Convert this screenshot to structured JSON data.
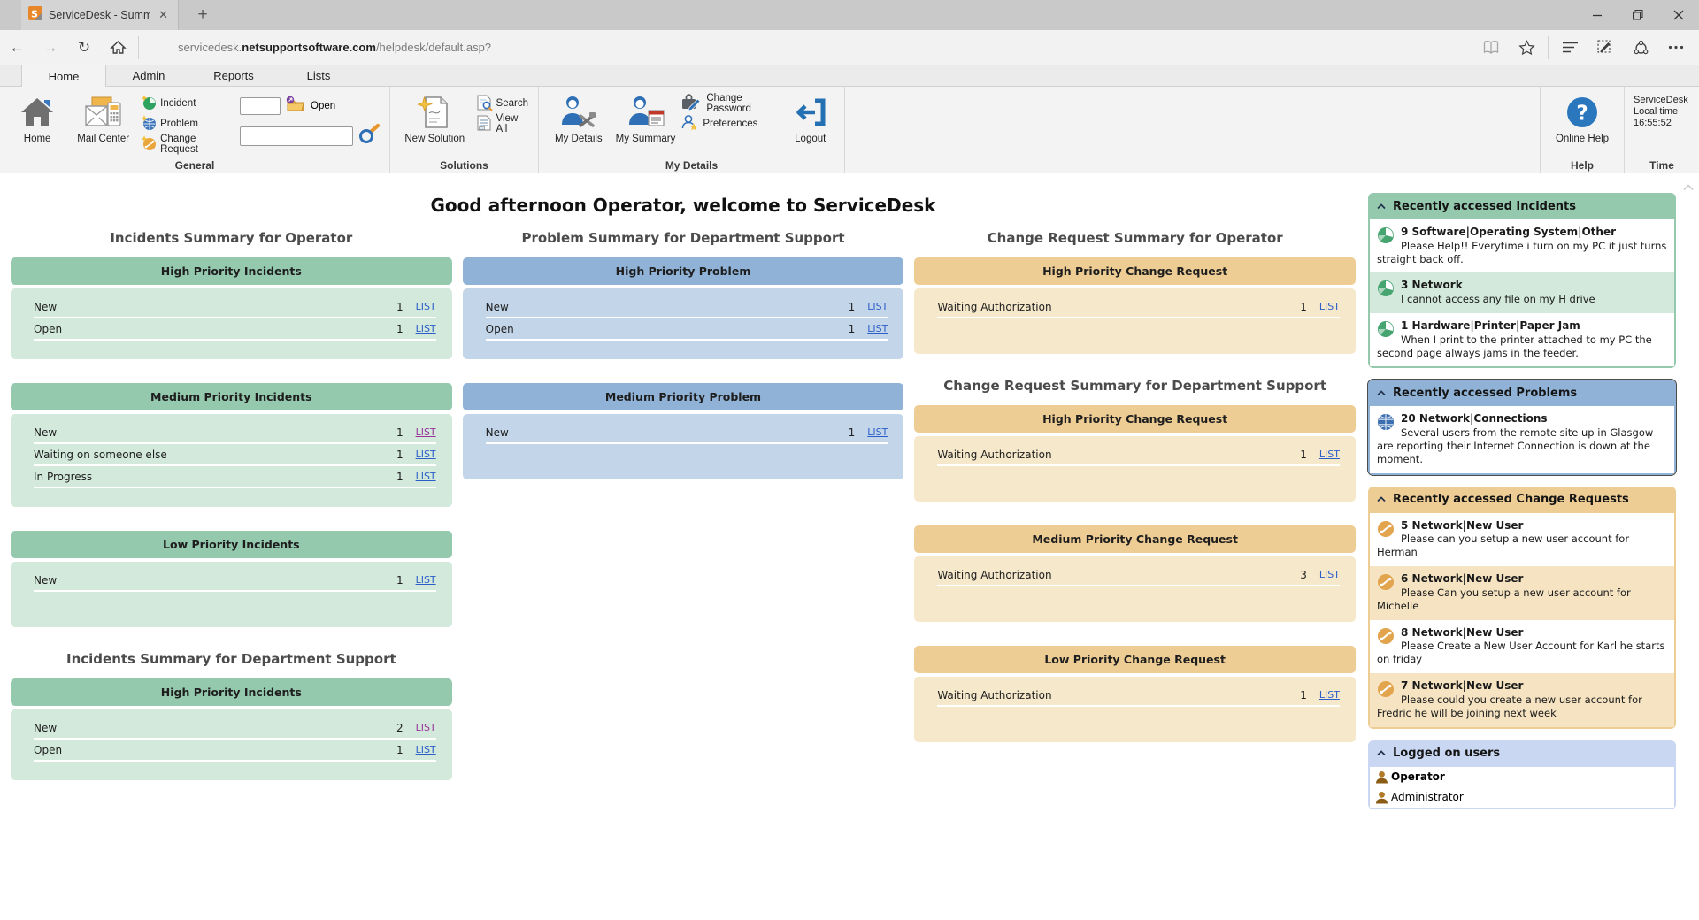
{
  "browser": {
    "tab_title": "ServiceDesk - Summary",
    "url": {
      "prefix": "servicedesk.",
      "domain": "netsupportsoftware.com",
      "path": "/helpdesk/default.asp?"
    }
  },
  "ribbon": {
    "tabs": [
      "Home",
      "Admin",
      "Reports",
      "Lists"
    ],
    "groups": {
      "general": {
        "label": "General",
        "home": "Home",
        "mail_center": "Mail Center",
        "links": [
          "Incident",
          "Problem",
          "Change Request"
        ],
        "open_label": "Open",
        "id_input_value": "",
        "search_input_value": ""
      },
      "solutions": {
        "label": "Solutions",
        "new_solution": "New Solution",
        "search": "Search",
        "view_all": "View All"
      },
      "my_details": {
        "label": "My Details",
        "my_details": "My Details",
        "my_summary": "My Summary",
        "change_password": "Change Password",
        "preferences": "Preferences",
        "logout": "Logout"
      },
      "help": {
        "label": "Help",
        "online_help": "Online Help"
      },
      "time": {
        "label": "Time",
        "lines": [
          "ServiceDesk",
          "Local time",
          "16:55:52"
        ]
      }
    }
  },
  "main": {
    "greeting": "Good afternoon Operator, welcome to ServiceDesk",
    "columns": [
      {
        "sections": [
          {
            "heading": "Incidents Summary for Operator",
            "panels": [
              {
                "title": "High Priority Incidents",
                "theme": "green",
                "rows": [
                  {
                    "label": "New",
                    "count": "1",
                    "link": "LIST",
                    "visited": false
                  },
                  {
                    "label": "Open",
                    "count": "1",
                    "link": "LIST",
                    "visited": false
                  }
                ]
              },
              {
                "title": "Medium Priority Incidents",
                "theme": "green",
                "rows": [
                  {
                    "label": "New",
                    "count": "1",
                    "link": "LIST",
                    "visited": true
                  },
                  {
                    "label": "Waiting on someone else",
                    "count": "1",
                    "link": "LIST",
                    "visited": false
                  },
                  {
                    "label": "In Progress",
                    "count": "1",
                    "link": "LIST",
                    "visited": false
                  }
                ]
              },
              {
                "title": "Low Priority Incidents",
                "theme": "green",
                "rows": [
                  {
                    "label": "New",
                    "count": "1",
                    "link": "LIST",
                    "visited": false
                  }
                ]
              }
            ]
          },
          {
            "heading": "Incidents Summary for Department Support",
            "panels": [
              {
                "title": "High Priority Incidents",
                "theme": "green",
                "rows": [
                  {
                    "label": "New",
                    "count": "2",
                    "link": "LIST",
                    "visited": true
                  },
                  {
                    "label": "Open",
                    "count": "1",
                    "link": "LIST",
                    "visited": false
                  }
                ]
              }
            ]
          }
        ]
      },
      {
        "sections": [
          {
            "heading": "Problem Summary for Department Support",
            "panels": [
              {
                "title": "High Priority Problem",
                "theme": "blue",
                "rows": [
                  {
                    "label": "New",
                    "count": "1",
                    "link": "LIST",
                    "visited": false
                  },
                  {
                    "label": "Open",
                    "count": "1",
                    "link": "LIST",
                    "visited": false
                  }
                ]
              },
              {
                "title": "Medium Priority Problem",
                "theme": "blue",
                "rows": [
                  {
                    "label": "New",
                    "count": "1",
                    "link": "LIST",
                    "visited": false
                  }
                ]
              }
            ]
          }
        ]
      },
      {
        "sections": [
          {
            "heading": "Change Request Summary for Operator",
            "panels": [
              {
                "title": "High Priority Change Request",
                "theme": "tan",
                "rows": [
                  {
                    "label": "Waiting Authorization",
                    "count": "1",
                    "link": "LIST",
                    "visited": false
                  }
                ]
              }
            ]
          },
          {
            "heading": "Change Request Summary for Department Support",
            "panels": [
              {
                "title": "High Priority Change Request",
                "theme": "tan",
                "rows": [
                  {
                    "label": "Waiting Authorization",
                    "count": "1",
                    "link": "LIST",
                    "visited": false
                  }
                ]
              },
              {
                "title": "Medium Priority Change Request",
                "theme": "tan",
                "rows": [
                  {
                    "label": "Waiting Authorization",
                    "count": "3",
                    "link": "LIST",
                    "visited": false
                  }
                ]
              },
              {
                "title": "Low Priority Change Request",
                "theme": "tan",
                "rows": [
                  {
                    "label": "Waiting Authorization",
                    "count": "1",
                    "link": "LIST",
                    "visited": false
                  }
                ]
              }
            ]
          }
        ]
      }
    ]
  },
  "sidebar": {
    "sections": [
      {
        "title": "Recently accessed Incidents",
        "theme": "green",
        "icon": "incident",
        "focused": false,
        "items": [
          {
            "title": "9 Software|Operating System|Other",
            "desc": "Please Help!! Everytime i turn on my PC it just turns straight back off."
          },
          {
            "title": "3 Network",
            "desc": "I cannot access any file on my H drive"
          },
          {
            "title": "1 Hardware|Printer|Paper Jam",
            "desc": "When I print to the printer attached to my PC the second page always jams in the feeder."
          }
        ]
      },
      {
        "title": "Recently accessed Problems",
        "theme": "blue",
        "icon": "problem",
        "focused": true,
        "items": [
          {
            "title": "20 Network|Connections",
            "desc": "Several users from the remote site up in Glasgow are reporting their Internet Connection is down at the moment."
          }
        ]
      },
      {
        "title": "Recently accessed Change Requests",
        "theme": "tan",
        "icon": "changereq",
        "focused": false,
        "items": [
          {
            "title": "5 Network|New User",
            "desc": "Please can you setup a new user account for Herman"
          },
          {
            "title": "6 Network|New User",
            "desc": "Please Can you setup a new user account for Michelle"
          },
          {
            "title": "8 Network|New User",
            "desc": "Please Create a New User Account for Karl he starts on friday"
          },
          {
            "title": "7 Network|New User",
            "desc": "Please could you create a new user account for Fredric he will be joining next week"
          }
        ]
      },
      {
        "title": "Logged on users",
        "theme": "users",
        "icon": "user",
        "focused": false,
        "items": [
          {
            "title": "Operator",
            "bold": true
          },
          {
            "title": "Administrator",
            "bold": false
          }
        ]
      }
    ]
  },
  "colors": {
    "green": "#94c9ae",
    "greenlight": "#d2e9dc",
    "blue": "#8fb2d6",
    "bluelight": "#c3d6e9",
    "tan": "#eecd95",
    "tanlight": "#f6e8cb",
    "tanlight2": "#f5e3c2",
    "users": "#c9d7f2",
    "userslight": "#dfe8f8",
    "link": "#2b5ec9",
    "visited": "#993399"
  }
}
